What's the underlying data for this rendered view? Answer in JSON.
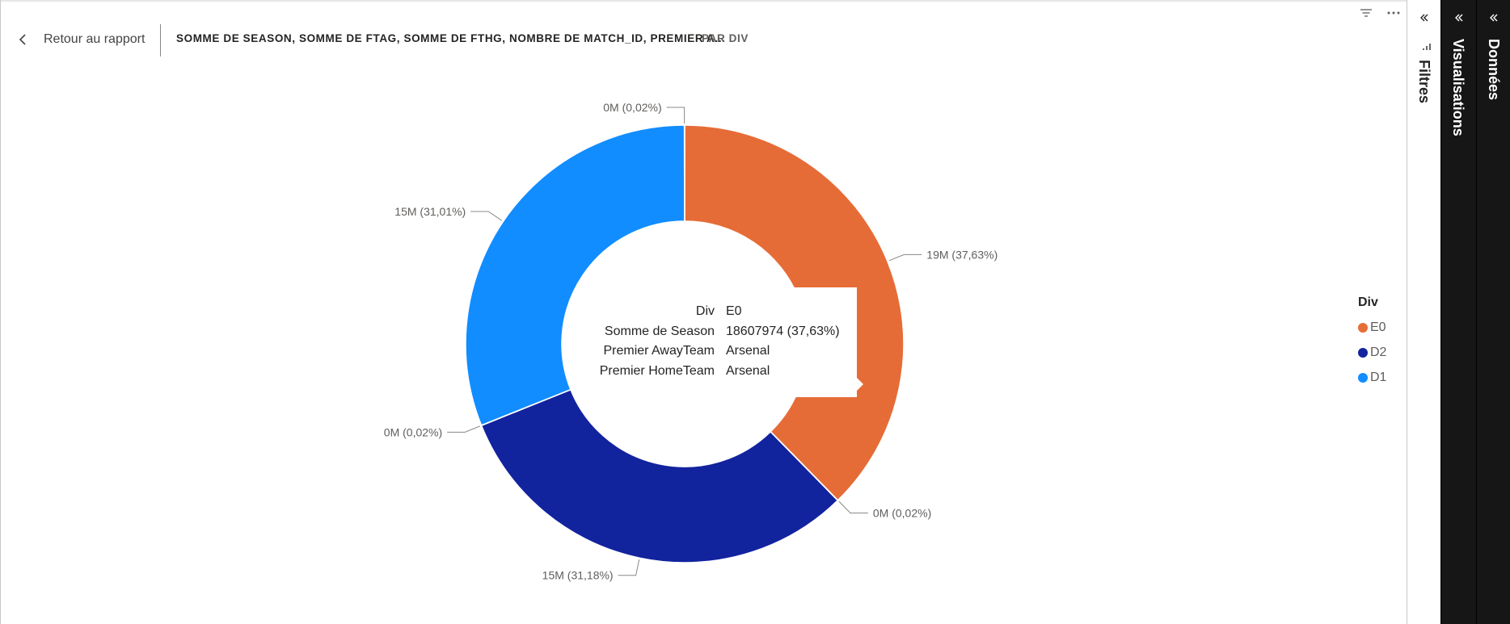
{
  "header": {
    "back_label": "Retour au rapport",
    "title": "SOMME DE SEASON, SOMME DE FTAG, SOMME DE FTHG, NOMBRE DE MATCH_ID, PREMIER A...",
    "subtitle": "PAR DIV"
  },
  "chart_data": {
    "type": "donut",
    "categories": [
      "E0",
      "D2",
      "D1"
    ],
    "values": [
      18607974,
      15419000,
      15334000
    ],
    "percent_labels": [
      "37,63%",
      "31,18%",
      "31,01%"
    ],
    "slices": [
      {
        "category": "E0",
        "value": 18607974,
        "label": "19M (37,63%)",
        "color": "#E66C37"
      },
      {
        "category": "E0-small",
        "label": "0M (0,02%)",
        "color": "#E66C37"
      },
      {
        "category": "D2",
        "value": 15419000,
        "label": "15M (31,18%)",
        "color": "#12239E"
      },
      {
        "category": "D2-small",
        "label": "0M (0,02%)",
        "color": "#12239E"
      },
      {
        "category": "D1",
        "value": 15334000,
        "label": "15M (31,01%)",
        "color": "#118DFF"
      },
      {
        "category": "D1-small",
        "label": "0M (0,02%)",
        "color": "#118DFF"
      }
    ],
    "legend": {
      "title": "Div",
      "placement": "right",
      "items": [
        {
          "label": "E0",
          "color": "#E66C37"
        },
        {
          "label": "D2",
          "color": "#12239E"
        },
        {
          "label": "D1",
          "color": "#118DFF"
        }
      ]
    }
  },
  "tooltip": {
    "rows": [
      {
        "key": "Div",
        "value": "E0"
      },
      {
        "key": "Somme de Season",
        "value": "18607974 (37,63%)"
      },
      {
        "key": "Premier AwayTeam",
        "value": "Arsenal"
      },
      {
        "key": "Premier HomeTeam",
        "value": "Arsenal"
      }
    ]
  },
  "panes": {
    "filters": "Filtres",
    "visualizations": "Visualisations",
    "data": "Données"
  },
  "icons": {
    "back": "chevron-left-icon",
    "filter": "filter-icon",
    "more": "more-options-icon",
    "collapse": "double-chevron-left-icon"
  }
}
